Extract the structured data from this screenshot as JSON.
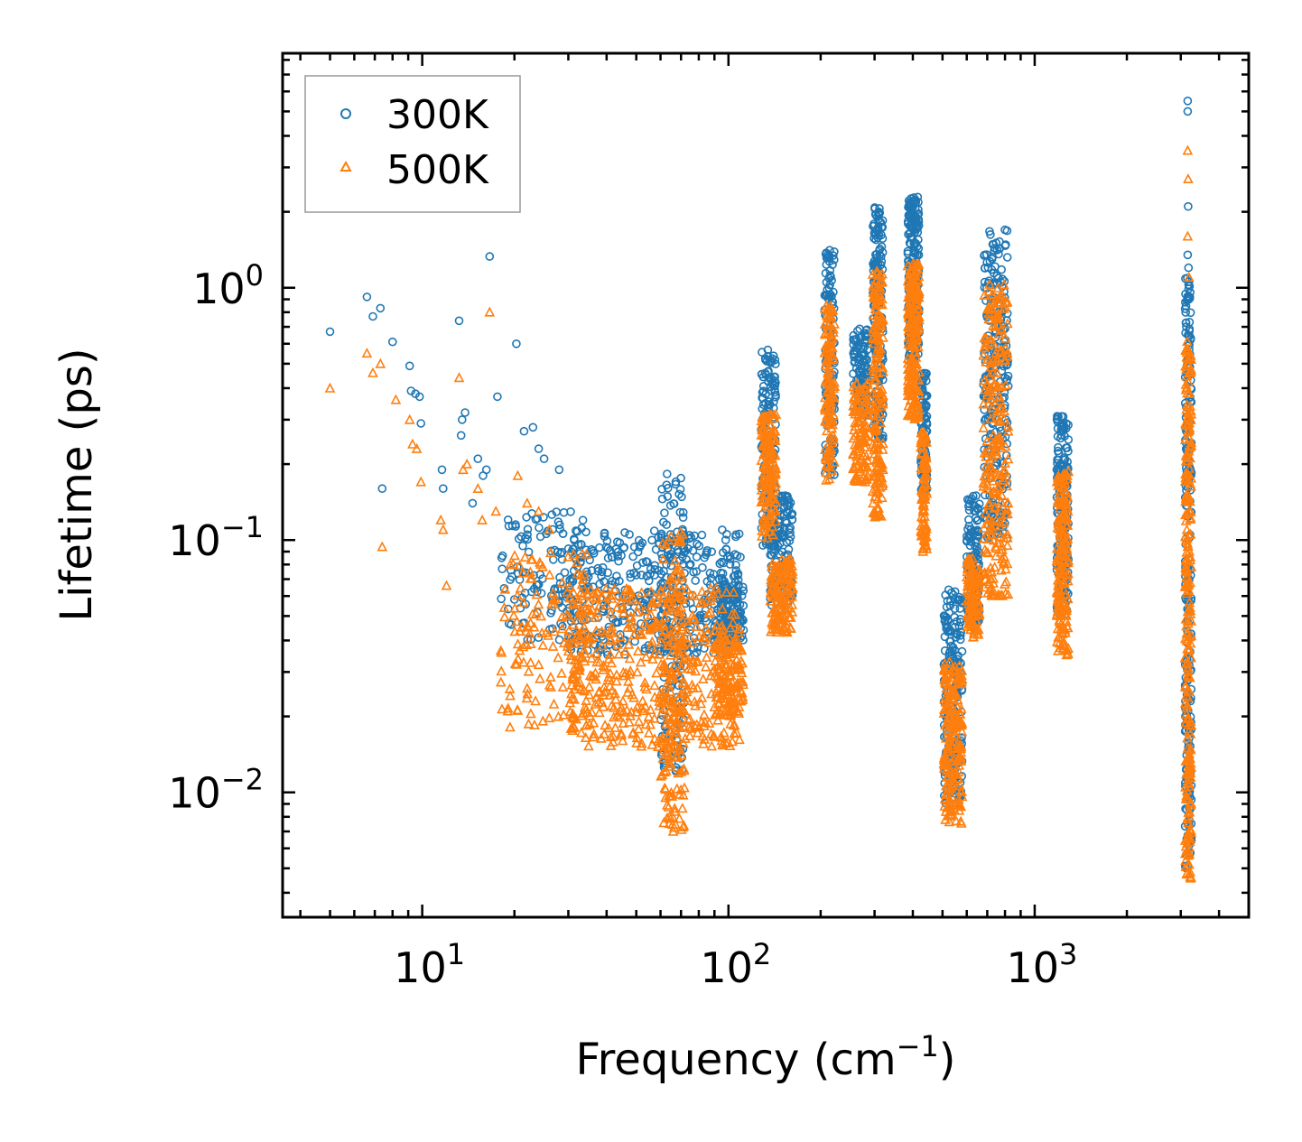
{
  "chart_data": {
    "type": "scatter",
    "xscale": "log",
    "yscale": "log",
    "xlim": [
      3.5,
      5000
    ],
    "ylim": [
      0.0032,
      8.5
    ],
    "xlabel": "Frequency (cm",
    "xlabel_sup": "−1",
    "xlabel_end": ")",
    "ylabel": "Lifetime (ps)",
    "xticks": [
      {
        "value": 10,
        "base": "10",
        "exp": "1"
      },
      {
        "value": 100,
        "base": "10",
        "exp": "2"
      },
      {
        "value": 1000,
        "base": "10",
        "exp": "3"
      }
    ],
    "yticks": [
      {
        "value": 0.01,
        "base": "10",
        "exp": "−2"
      },
      {
        "value": 0.1,
        "base": "10",
        "exp": "−1"
      },
      {
        "value": 1,
        "base": "10",
        "exp": "0"
      }
    ],
    "legend_position": "top-left",
    "series": [
      {
        "name": "300K",
        "marker": "circle",
        "color": "#1f77b4"
      },
      {
        "name": "500K",
        "marker": "triangle",
        "color": "#ff7f0e"
      }
    ],
    "low_freq_points": {
      "300K": [
        [
          5.0,
          0.67
        ],
        [
          6.6,
          0.92
        ],
        [
          6.9,
          0.77
        ],
        [
          7.3,
          0.83
        ],
        [
          7.4,
          0.16
        ],
        [
          8.0,
          0.61
        ],
        [
          9.1,
          0.49
        ],
        [
          9.2,
          0.39
        ],
        [
          9.5,
          0.38
        ],
        [
          9.8,
          0.37
        ],
        [
          9.9,
          0.29
        ],
        [
          11.6,
          0.19
        ],
        [
          11.7,
          0.16
        ],
        [
          13.2,
          0.74
        ],
        [
          13.4,
          0.26
        ],
        [
          13.5,
          0.3
        ],
        [
          13.8,
          0.32
        ],
        [
          14.6,
          0.14
        ],
        [
          15.2,
          0.21
        ],
        [
          15.8,
          0.18
        ],
        [
          16.2,
          0.19
        ],
        [
          16.6,
          1.33
        ],
        [
          17.6,
          0.37
        ],
        [
          20.3,
          0.6
        ],
        [
          21.5,
          0.27
        ],
        [
          23.0,
          0.28
        ],
        [
          24.0,
          0.23
        ],
        [
          25.0,
          0.21
        ],
        [
          28.0,
          0.19
        ]
      ],
      "500K": [
        [
          5.0,
          0.4
        ],
        [
          6.6,
          0.55
        ],
        [
          6.9,
          0.46
        ],
        [
          7.3,
          0.5
        ],
        [
          7.4,
          0.094
        ],
        [
          8.2,
          0.36
        ],
        [
          9.1,
          0.3
        ],
        [
          9.3,
          0.24
        ],
        [
          9.6,
          0.23
        ],
        [
          9.9,
          0.17
        ],
        [
          11.5,
          0.12
        ],
        [
          11.7,
          0.11
        ],
        [
          12.0,
          0.066
        ],
        [
          13.2,
          0.44
        ],
        [
          13.6,
          0.19
        ],
        [
          14.0,
          0.2
        ],
        [
          15.2,
          0.16
        ],
        [
          15.7,
          0.12
        ],
        [
          16.6,
          0.8
        ],
        [
          17.4,
          0.13
        ],
        [
          20.5,
          0.18
        ],
        [
          22.0,
          0.14
        ],
        [
          24.0,
          0.13
        ],
        [
          26.0,
          0.11
        ]
      ]
    },
    "clusters": {
      "300K": [
        {
          "f": [
            18,
            35
          ],
          "lt": [
            0.04,
            0.13
          ],
          "n": 120
        },
        {
          "f": [
            30,
            110
          ],
          "lt": [
            0.035,
            0.11
          ],
          "n": 420
        },
        {
          "f": [
            60,
            72
          ],
          "lt": [
            0.012,
            0.185
          ],
          "n": 140
        },
        {
          "f": [
            90,
            112
          ],
          "lt": [
            0.04,
            0.07
          ],
          "n": 120
        },
        {
          "f": [
            128,
            143
          ],
          "lt": [
            0.095,
            0.57
          ],
          "n": 160
        },
        {
          "f": [
            137,
            162
          ],
          "lt": [
            0.055,
            0.15
          ],
          "n": 140
        },
        {
          "f": [
            206,
            222
          ],
          "lt": [
            0.18,
            1.42
          ],
          "n": 120
        },
        {
          "f": [
            255,
            285
          ],
          "lt": [
            0.3,
            0.7
          ],
          "n": 110
        },
        {
          "f": [
            296,
            320
          ],
          "lt": [
            0.25,
            2.1
          ],
          "n": 180
        },
        {
          "f": [
            385,
            420
          ],
          "lt": [
            0.5,
            2.3
          ],
          "n": 200
        },
        {
          "f": [
            425,
            445
          ],
          "lt": [
            0.15,
            0.46
          ],
          "n": 90
        },
        {
          "f": [
            505,
            580
          ],
          "lt": [
            0.009,
            0.064
          ],
          "n": 200
        },
        {
          "f": [
            600,
            660
          ],
          "lt": [
            0.045,
            0.15
          ],
          "n": 120
        },
        {
          "f": [
            680,
            820
          ],
          "lt": [
            0.1,
            1.75
          ],
          "n": 240
        },
        {
          "f": [
            1180,
            1290
          ],
          "lt": [
            0.05,
            0.31
          ],
          "n": 180
        },
        {
          "f": [
            3100,
            3250
          ],
          "lt": [
            0.005,
            1.1
          ],
          "n": 240
        }
      ],
      "500K": [
        {
          "f": [
            18,
            35
          ],
          "lt": [
            0.018,
            0.09
          ],
          "n": 140
        },
        {
          "f": [
            30,
            110
          ],
          "lt": [
            0.015,
            0.065
          ],
          "n": 480
        },
        {
          "f": [
            60,
            72
          ],
          "lt": [
            0.0068,
            0.11
          ],
          "n": 160
        },
        {
          "f": [
            90,
            112
          ],
          "lt": [
            0.02,
            0.042
          ],
          "n": 120
        },
        {
          "f": [
            128,
            143
          ],
          "lt": [
            0.1,
            0.32
          ],
          "n": 150
        },
        {
          "f": [
            137,
            162
          ],
          "lt": [
            0.043,
            0.085
          ],
          "n": 140
        },
        {
          "f": [
            206,
            222
          ],
          "lt": [
            0.17,
            0.85
          ],
          "n": 120
        },
        {
          "f": [
            255,
            285
          ],
          "lt": [
            0.17,
            0.42
          ],
          "n": 110
        },
        {
          "f": [
            296,
            320
          ],
          "lt": [
            0.12,
            1.2
          ],
          "n": 180
        },
        {
          "f": [
            385,
            420
          ],
          "lt": [
            0.3,
            1.25
          ],
          "n": 200
        },
        {
          "f": [
            425,
            445
          ],
          "lt": [
            0.09,
            0.27
          ],
          "n": 90
        },
        {
          "f": [
            505,
            580
          ],
          "lt": [
            0.0075,
            0.035
          ],
          "n": 200
        },
        {
          "f": [
            600,
            660
          ],
          "lt": [
            0.04,
            0.085
          ],
          "n": 120
        },
        {
          "f": [
            680,
            820
          ],
          "lt": [
            0.06,
            1.05
          ],
          "n": 240
        },
        {
          "f": [
            1180,
            1290
          ],
          "lt": [
            0.035,
            0.19
          ],
          "n": 180
        },
        {
          "f": [
            3100,
            3250
          ],
          "lt": [
            0.0045,
            0.65
          ],
          "n": 240
        }
      ]
    },
    "outliers": {
      "300K": [
        [
          3160,
          5.5
        ],
        [
          3160,
          5.0
        ],
        [
          3170,
          2.1
        ],
        [
          3160,
          1.35
        ],
        [
          3180,
          1.2
        ]
      ],
      "500K": [
        [
          3160,
          3.5
        ],
        [
          3170,
          2.7
        ],
        [
          3160,
          1.6
        ],
        [
          3190,
          1.1
        ]
      ]
    }
  }
}
